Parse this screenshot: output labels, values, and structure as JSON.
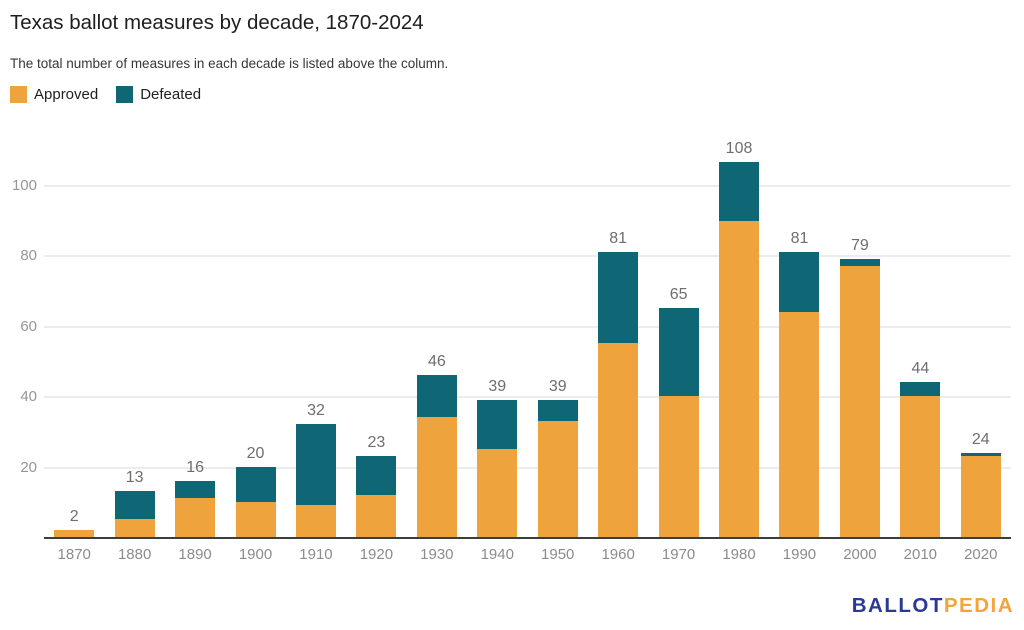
{
  "header": {
    "title": "Texas ballot measures by decade, 1870-2024",
    "subtitle": "The total number of measures in each decade is listed above the column."
  },
  "legend": [
    {
      "label": "Approved",
      "color": "#EFA33C"
    },
    {
      "label": "Defeated",
      "color": "#0F6674"
    }
  ],
  "chart_data": {
    "type": "bar",
    "stacked": true,
    "title": "Texas ballot measures by decade, 1870-2024",
    "subtitle": "The total number of measures in each decade is listed above the column.",
    "categories": [
      "1870",
      "1880",
      "1890",
      "1900",
      "1910",
      "1920",
      "1930",
      "1940",
      "1950",
      "1960",
      "1970",
      "1980",
      "1990",
      "2000",
      "2010",
      "2020"
    ],
    "series": [
      {
        "name": "Approved",
        "color": "#EFA33C",
        "values": [
          2,
          5,
          11,
          10,
          9,
          12,
          34,
          25,
          33,
          55,
          40,
          91,
          64,
          77,
          40,
          23
        ]
      },
      {
        "name": "Defeated",
        "color": "#0F6674",
        "values": [
          0,
          8,
          5,
          10,
          23,
          11,
          12,
          14,
          6,
          26,
          25,
          17,
          17,
          2,
          4,
          1
        ]
      }
    ],
    "totals": [
      2,
      13,
      16,
      20,
      32,
      23,
      46,
      39,
      39,
      81,
      65,
      108,
      81,
      79,
      44,
      24
    ],
    "xlabel": "",
    "ylabel": "",
    "y_ticks": [
      20,
      40,
      60,
      80,
      100
    ],
    "ylim": [
      0,
      113
    ],
    "grid": "horizontal",
    "legend_position": "top-left",
    "total_labels_above_bars": true
  },
  "footer": {
    "logo_part1": "BALLOT",
    "logo_part2": "PEDIA",
    "logo_color1": "#2A3A94",
    "logo_color2": "#F4A43B"
  },
  "colors": {
    "approved": "#EFA33C",
    "defeated": "#0F6674",
    "gridline": "#ECECEC",
    "axis_line": "#3D3D3D",
    "tick_label": "#969696",
    "value_label": "#6E6E6E"
  }
}
